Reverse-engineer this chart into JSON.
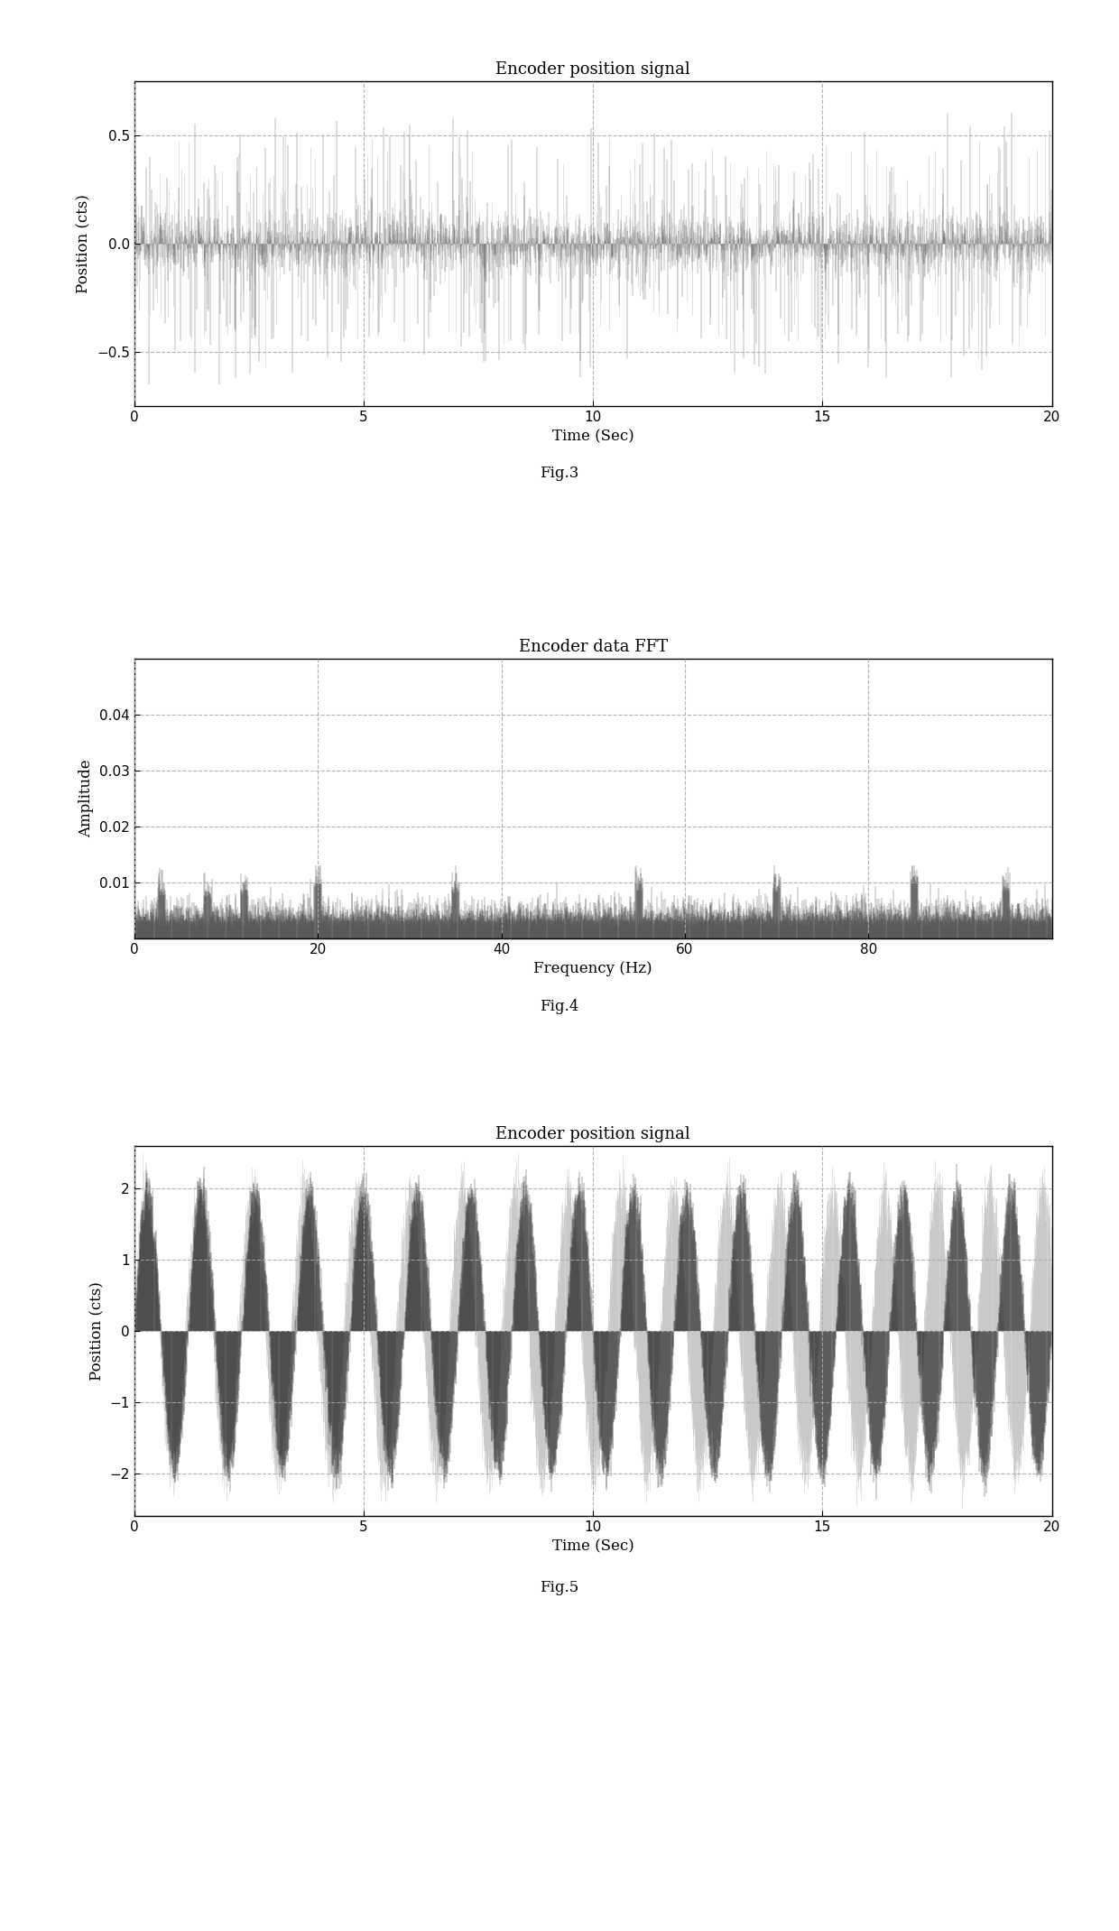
{
  "fig1_title": "Encoder position signal",
  "fig1_xlabel": "Time (Sec)",
  "fig1_ylabel": "Position (cts)",
  "fig1_xlim": [
    0,
    20
  ],
  "fig1_ylim": [
    -0.75,
    0.75
  ],
  "fig1_yticks": [
    -0.5,
    0,
    0.5
  ],
  "fig1_xticks": [
    0,
    5,
    10,
    15,
    20
  ],
  "fig1_caption": "Fig.3",
  "fig2_title": "Encoder data FFT",
  "fig2_xlabel": "Frequency (Hz)",
  "fig2_ylabel": "Amplitude",
  "fig2_xlim": [
    0,
    100
  ],
  "fig2_ylim": [
    0,
    0.05
  ],
  "fig2_yticks": [
    0.01,
    0.02,
    0.03,
    0.04
  ],
  "fig2_xticks": [
    0,
    20,
    40,
    60,
    80
  ],
  "fig2_caption": "Fig.4",
  "fig3_title": "Encoder position signal",
  "fig3_xlabel": "Time (Sec)",
  "fig3_ylabel": "Position (cts)",
  "fig3_xlim": [
    0,
    20
  ],
  "fig3_ylim": [
    -2.6,
    2.6
  ],
  "fig3_yticks": [
    -2,
    -1,
    0,
    1,
    2
  ],
  "fig3_xticks": [
    0,
    5,
    10,
    15,
    20
  ],
  "fig3_caption": "Fig.5",
  "background_color": "#ffffff",
  "grid_color": "#aaaaaa",
  "grid_linestyle": "--",
  "dark_color": "#222222",
  "mid_color": "#777777",
  "light_color": "#bbbbbb"
}
